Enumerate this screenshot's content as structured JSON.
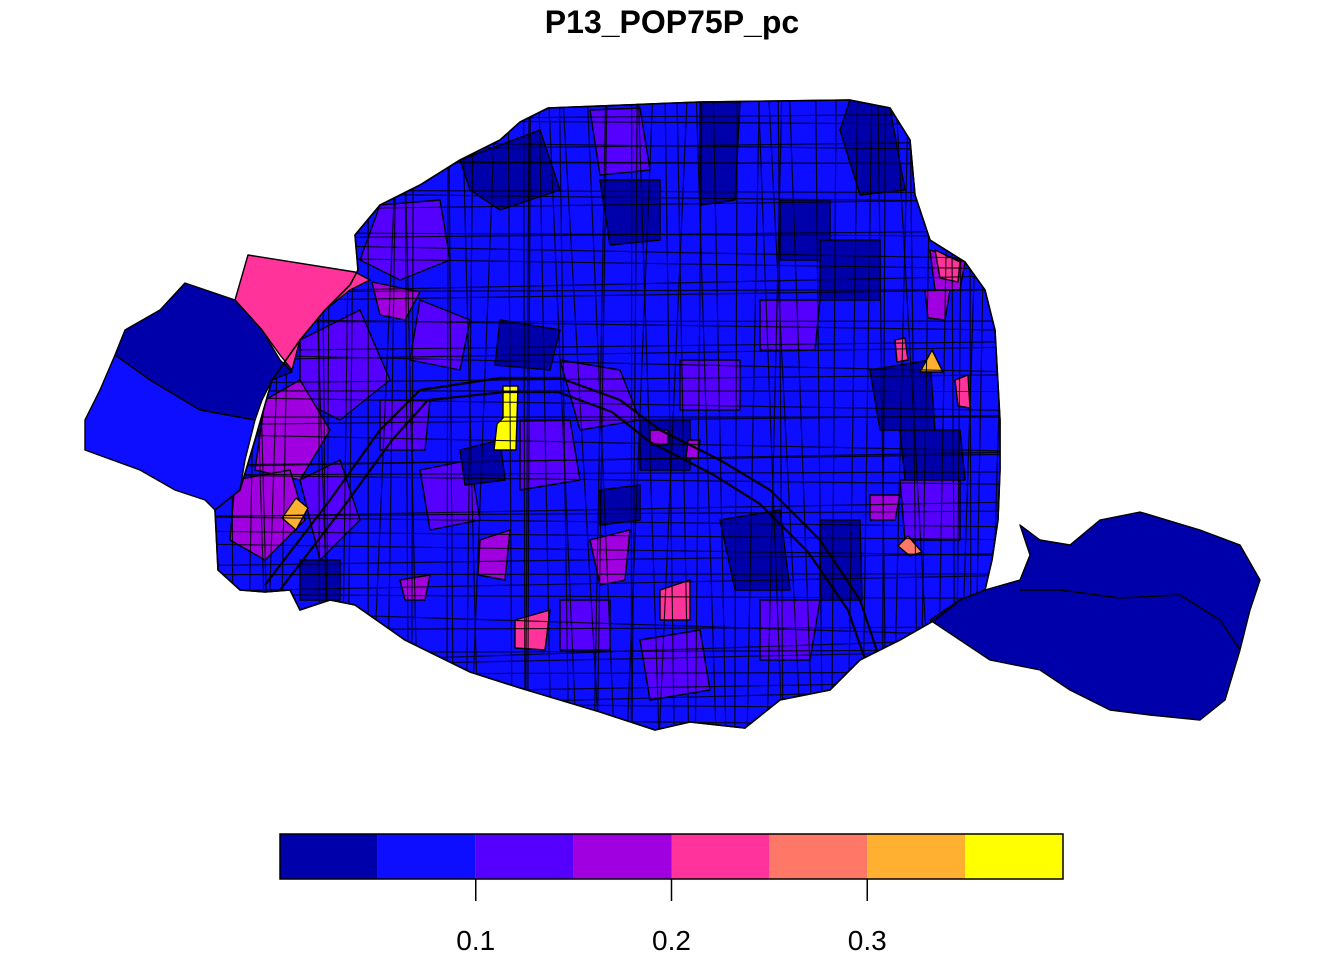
{
  "title": "P13_POP75P_pc",
  "legend": {
    "breaks": [
      0.0,
      0.05,
      0.1,
      0.15,
      0.2,
      0.25,
      0.3,
      0.35,
      0.4
    ],
    "colors": [
      "#0000aa",
      "#0d0dff",
      "#5500ff",
      "#a000e0",
      "#ff3399",
      "#ff7766",
      "#ffb030",
      "#ffff00"
    ],
    "tick_values": [
      0.1,
      0.2,
      0.3
    ],
    "tick_labels": [
      "0.1",
      "0.2",
      "0.3"
    ]
  }
}
